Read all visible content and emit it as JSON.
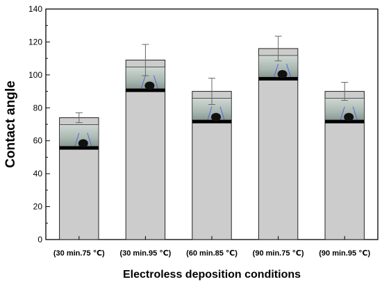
{
  "chart_data": {
    "type": "bar",
    "xlabel": "Electroless deposition conditions",
    "ylabel": "Contact angle",
    "ylim": [
      0,
      140
    ],
    "yticks": [
      0,
      20,
      40,
      60,
      80,
      100,
      120,
      140
    ],
    "categories": [
      "(30 min.75 ℃)",
      "(30 min.95 ℃)",
      "(60 min.85 ℃)",
      "(90 min.75 ℃)",
      "(90 min.95 ℃)"
    ],
    "values": [
      74,
      109,
      90,
      116,
      90
    ],
    "errors": [
      3,
      9.5,
      8,
      7.5,
      5.5
    ],
    "bar_color": "#cccccc",
    "inset_photos": "droplet-photo-icon",
    "grid": false
  }
}
